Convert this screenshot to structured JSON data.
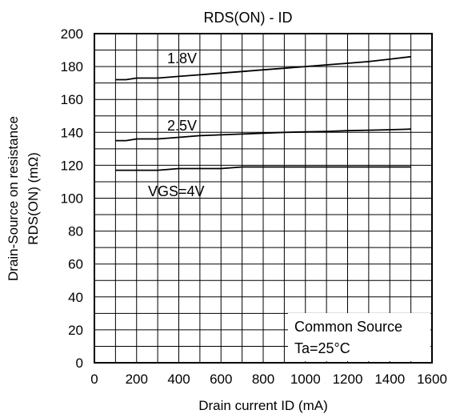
{
  "chart_data": {
    "type": "line",
    "title": "RDS(ON) - ID",
    "xlabel": "Drain current  ID (mA)",
    "ylabel_line1": "Drain-Source on resistance",
    "ylabel_line2": "RDS(ON) (mΩ)",
    "xlim": [
      0,
      1600
    ],
    "ylim": [
      0,
      200
    ],
    "xticks": [
      0,
      200,
      400,
      600,
      800,
      1000,
      1200,
      1400,
      1600
    ],
    "yticks": [
      0,
      20,
      40,
      60,
      80,
      100,
      120,
      140,
      160,
      180,
      200
    ],
    "grid": true,
    "series": [
      {
        "name": "1.8V",
        "x": [
          100,
          150,
          200,
          300,
          400,
          500,
          600,
          700,
          800,
          900,
          1000,
          1100,
          1200,
          1300,
          1400,
          1500
        ],
        "y": [
          172,
          172,
          173,
          173,
          174,
          175,
          176,
          177,
          178,
          179,
          180,
          181,
          182,
          183,
          184.5,
          186
        ]
      },
      {
        "name": "2.5V",
        "x": [
          100,
          150,
          200,
          300,
          400,
          500,
          600,
          700,
          800,
          900,
          1000,
          1100,
          1200,
          1300,
          1400,
          1500
        ],
        "y": [
          135,
          135,
          136,
          136,
          137,
          138,
          138.5,
          139,
          139.5,
          140,
          140.3,
          140.6,
          141,
          141.3,
          141.6,
          142
        ]
      },
      {
        "name": "VGS=4V",
        "x": [
          100,
          200,
          300,
          400,
          500,
          600,
          700,
          800,
          900,
          1000,
          1100,
          1200,
          1300,
          1400,
          1500
        ],
        "y": [
          117,
          117,
          117,
          118,
          118,
          118,
          119,
          119,
          119,
          119,
          119,
          119,
          119,
          119,
          119
        ]
      }
    ],
    "annotations": [
      "Common Source",
      "Ta=25°C"
    ],
    "legend": "none"
  }
}
